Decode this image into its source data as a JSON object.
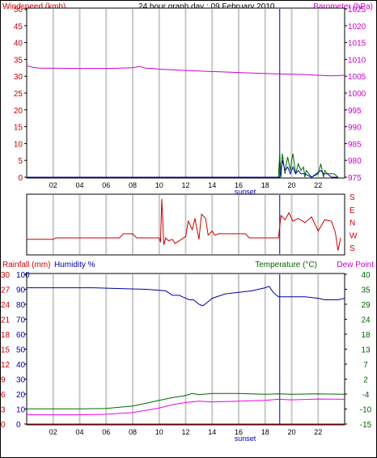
{
  "title": "24 hour graph day : 09 February 2010",
  "colors": {
    "red": "#cc0000",
    "magenta": "#cc00cc",
    "blue": "#0000aa",
    "green": "#006600",
    "pink": "#ee00ee",
    "grid": "#c8c8c8",
    "sunset": "#0000aa"
  },
  "time_ticks": [
    "02",
    "04",
    "06",
    "08",
    "10",
    "12",
    "14",
    "16",
    "18",
    "20",
    "22"
  ],
  "sunset_label": "sunset",
  "chart_data": [
    {
      "type": "line",
      "name": "wind-barometer",
      "left_label": "Windspeed (kmh)",
      "right_label": "Barometer (hPa)",
      "left_ticks": [
        "50",
        "45",
        "40",
        "35",
        "30",
        "25",
        "20",
        "15",
        "10",
        "5",
        "0"
      ],
      "right_ticks": [
        "1025",
        "1020",
        "1015",
        "1010",
        "1005",
        "1000",
        "995",
        "990",
        "985",
        "980",
        "975"
      ],
      "ylim_left": [
        0,
        50
      ],
      "ylim_right": [
        975,
        1025
      ],
      "xlim": [
        0,
        24
      ],
      "series": [
        {
          "name": "Barometer",
          "axis": "right",
          "color": "#cc00cc",
          "x": [
            0,
            0.5,
            1,
            2,
            4,
            6,
            7,
            8,
            8.5,
            9,
            9.5,
            10,
            11,
            12,
            14,
            16,
            18,
            20,
            21,
            22,
            23,
            24
          ],
          "y": [
            1008.1,
            1007.6,
            1007.4,
            1007.4,
            1007.3,
            1007.3,
            1007.4,
            1007.5,
            1007.9,
            1007.4,
            1007.3,
            1007.1,
            1006.9,
            1006.7,
            1006.4,
            1006.1,
            1005.8,
            1005.6,
            1005.5,
            1005.3,
            1005.1,
            1005.3
          ]
        },
        {
          "name": "Wind gust",
          "axis": "left",
          "color": "#006600",
          "x": [
            0,
            19.0,
            19.1,
            19.2,
            19.3,
            19.5,
            19.6,
            19.7,
            19.9,
            20.0,
            20.1,
            20.3,
            20.5,
            20.7,
            20.9,
            21.0,
            21.1,
            21.5,
            22.0,
            22.2,
            22.4,
            22.5,
            22.7,
            23.0,
            23.2,
            23.5
          ],
          "y": [
            0,
            0,
            7,
            0,
            7,
            1,
            4,
            6,
            2,
            5,
            7,
            1,
            4,
            2,
            3,
            0,
            2,
            0,
            1,
            4,
            0,
            2,
            1,
            1,
            1,
            0
          ]
        },
        {
          "name": "Wind speed",
          "axis": "left",
          "color": "#0000aa",
          "x": [
            0,
            19.1,
            19.3,
            19.5,
            19.7,
            19.9,
            20.1,
            20.3,
            20.5,
            20.7,
            21.0,
            21.5,
            22.2,
            22.4,
            22.7,
            23.0,
            23.5
          ],
          "y": [
            0,
            0,
            5,
            2,
            3,
            1,
            3,
            1,
            2,
            1,
            1,
            0,
            2,
            1,
            1,
            0,
            0
          ]
        }
      ]
    },
    {
      "type": "line",
      "name": "wind-direction",
      "right_ticks": [
        "S",
        "E",
        "N",
        "W",
        "S"
      ],
      "ylim": [
        0,
        4
      ],
      "xlim": [
        0,
        24
      ],
      "series": [
        {
          "name": "Wind direction",
          "color": "#cc0000",
          "x": [
            0,
            2,
            2.2,
            7,
            7.3,
            8,
            8.3,
            10.0,
            10.1,
            10.2,
            10.35,
            10.5,
            10.7,
            11,
            11.2,
            12,
            12.2,
            12.5,
            12.7,
            13,
            13.2,
            13.5,
            13.7,
            14,
            14.2,
            14.5,
            16.5,
            16.8,
            19.0,
            19.2,
            19.5,
            19.8,
            20.1,
            20.5,
            21,
            21.5,
            22,
            22.5,
            23,
            23.3,
            23.5,
            23.7
          ],
          "y": [
            1.0,
            1.0,
            1.1,
            1.1,
            1.4,
            1.4,
            1.1,
            1.1,
            0.8,
            3.9,
            0.6,
            1.1,
            0.9,
            1.0,
            0.7,
            1.2,
            2.3,
            1.7,
            2.5,
            1.0,
            2.8,
            2.5,
            1.3,
            1.6,
            1.3,
            1.4,
            1.4,
            1.1,
            1.1,
            2.7,
            2.4,
            2.9,
            2.3,
            2.5,
            2.2,
            2.6,
            1.6,
            2.4,
            2.3,
            1.5,
            0.2,
            1.1
          ]
        }
      ]
    },
    {
      "type": "line",
      "name": "rain-humidity-temperature",
      "labels": [
        "Rainfall (mm)",
        "Humidity %",
        "Temperature (°C)",
        "Dew Point"
      ],
      "rain_ticks": [
        "30",
        "27",
        "24",
        "21",
        "18",
        "15",
        "12",
        "9",
        "6",
        "3",
        "0"
      ],
      "humidity_ticks": [
        "100",
        "90",
        "80",
        "70",
        "60",
        "50",
        "40",
        "30",
        "20",
        "10",
        "0"
      ],
      "temperature_ticks": [
        "40",
        "35",
        "29",
        "24",
        "18",
        "13",
        "7",
        "2",
        "-4",
        "-10",
        "-15"
      ],
      "ylim_humidity": [
        0,
        100
      ],
      "ylim_temperature": [
        -15,
        40
      ],
      "xlim": [
        0,
        24
      ],
      "series": [
        {
          "name": "Humidity",
          "axis": "humidity",
          "color": "#0000aa",
          "x": [
            0,
            3,
            5,
            9,
            10.5,
            11,
            11.5,
            12,
            12.3,
            12.6,
            13,
            13.3,
            13.6,
            14,
            15,
            16,
            17,
            18,
            18.3,
            18.6,
            19,
            20,
            21,
            22,
            22.5,
            23,
            23.5,
            24
          ],
          "y": [
            91,
            91,
            91,
            90,
            89,
            86,
            86,
            84,
            83,
            83,
            80,
            79,
            81,
            84,
            87,
            88,
            89,
            91,
            92,
            88,
            85,
            85,
            85,
            84,
            83,
            83,
            83,
            84
          ]
        },
        {
          "name": "Temperature",
          "axis": "temperature",
          "color": "#006600",
          "x": [
            0,
            4,
            6,
            8,
            9,
            10,
            11,
            12,
            12.5,
            13,
            14,
            16,
            18,
            19,
            20,
            22,
            24
          ],
          "y": [
            -9.4,
            -9.4,
            -9.3,
            -8.4,
            -7.4,
            -6.3,
            -5.3,
            -4.5,
            -3.8,
            -4.2,
            -3.8,
            -3.8,
            -4.1,
            -3.9,
            -4.1,
            -3.9,
            -4.1
          ]
        },
        {
          "name": "Dew Point",
          "axis": "temperature",
          "color": "#ee00ee",
          "x": [
            0,
            4,
            6,
            8,
            10,
            11,
            12,
            13,
            14,
            16,
            18,
            19,
            20,
            22,
            24
          ],
          "y": [
            -11.6,
            -11.6,
            -11.4,
            -10.8,
            -9.1,
            -7.9,
            -7.1,
            -6.6,
            -6.9,
            -6.6,
            -6.3,
            -5.9,
            -6.1,
            -5.8,
            -5.9
          ]
        },
        {
          "name": "Rainfall",
          "axis": "humidity",
          "color": "#cc0000",
          "x": [
            0,
            24
          ],
          "y": [
            0,
            0
          ]
        }
      ]
    }
  ]
}
